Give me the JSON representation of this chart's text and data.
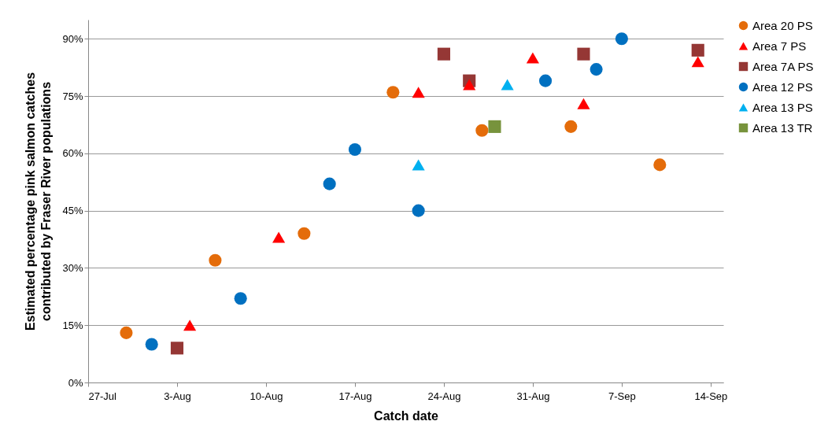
{
  "chart_data": {
    "type": "scatter",
    "xlabel": "Catch date",
    "ylabel": "Estimated percentage pink salmon catches contributed by Fraser River populations",
    "xlim": [
      "--07-27",
      "--09-15"
    ],
    "ylim": [
      0,
      95
    ],
    "xticks": [
      {
        "value": "--07-27",
        "label": "27-Jul"
      },
      {
        "value": "--08-03",
        "label": "3-Aug"
      },
      {
        "value": "--08-10",
        "label": "10-Aug"
      },
      {
        "value": "--08-17",
        "label": "17-Aug"
      },
      {
        "value": "--08-24",
        "label": "24-Aug"
      },
      {
        "value": "--08-31",
        "label": "31-Aug"
      },
      {
        "value": "--09-07",
        "label": "7-Sep"
      },
      {
        "value": "--09-14",
        "label": "14-Sep"
      }
    ],
    "yticks": [
      {
        "value": 0,
        "label": "0%"
      },
      {
        "value": 15,
        "label": "15%"
      },
      {
        "value": 30,
        "label": "30%"
      },
      {
        "value": 45,
        "label": "45%"
      },
      {
        "value": 60,
        "label": "60%"
      },
      {
        "value": 75,
        "label": "75%"
      },
      {
        "value": 90,
        "label": "90%"
      }
    ],
    "grid": "y",
    "legend": "right",
    "series": [
      {
        "name": "Area 20 PS",
        "color": "#e46c0a",
        "marker": "circle",
        "x": [
          "--07-30",
          "--08-06",
          "--08-13",
          "--08-20",
          "--08-27",
          "--09-03",
          "--09-10"
        ],
        "values": [
          13,
          32,
          39,
          76,
          66,
          67,
          57
        ]
      },
      {
        "name": "Area 7 PS",
        "color": "#ff0000",
        "marker": "triangle",
        "x": [
          "--08-04",
          "--08-11",
          "--08-22",
          "--08-26",
          "--08-31",
          "--09-04",
          "--09-13"
        ],
        "values": [
          15,
          38,
          76,
          78,
          85,
          73,
          84
        ]
      },
      {
        "name": "Area 7A PS",
        "color": "#953735",
        "marker": "square",
        "x": [
          "--08-03",
          "--08-24",
          "--08-26",
          "--09-04",
          "--09-13"
        ],
        "values": [
          9,
          86,
          79,
          86,
          87
        ]
      },
      {
        "name": "Area 12 PS",
        "color": "#0070c0",
        "marker": "circle",
        "x": [
          "--08-01",
          "--08-08",
          "--08-15",
          "--08-17",
          "--08-22",
          "--09-01",
          "--09-05",
          "--09-07"
        ],
        "values": [
          10,
          22,
          52,
          61,
          45,
          79,
          82,
          90
        ]
      },
      {
        "name": "Area 13 PS",
        "color": "#00b0f0",
        "marker": "triangle",
        "x": [
          "--08-22",
          "--08-29"
        ],
        "values": [
          57,
          78
        ]
      },
      {
        "name": "Area 13 TR",
        "color": "#77933c",
        "marker": "square",
        "x": [
          "--08-28"
        ],
        "values": [
          67
        ]
      }
    ]
  }
}
